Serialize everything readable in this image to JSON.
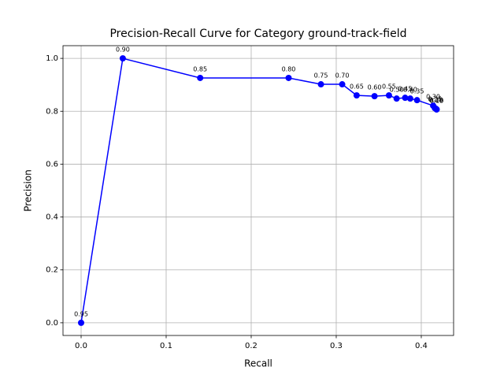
{
  "chart_data": {
    "type": "line",
    "title": "Precision-Recall Curve for Category ground-track-field",
    "xlabel": "Recall",
    "ylabel": "Precision",
    "x": [
      0.0,
      0.049,
      0.14,
      0.244,
      0.282,
      0.307,
      0.324,
      0.345,
      0.362,
      0.371,
      0.381,
      0.387,
      0.395,
      0.414,
      0.416,
      0.417,
      0.418,
      0.418
    ],
    "series": [
      {
        "color": "#0000ff",
        "values": [
          0.0,
          1.0,
          0.926,
          0.926,
          0.902,
          0.902,
          0.86,
          0.857,
          0.86,
          0.848,
          0.851,
          0.848,
          0.842,
          0.821,
          0.812,
          0.81,
          0.807,
          0.807
        ],
        "point_labels": [
          "0.95",
          "0.90",
          "0.85",
          "0.80",
          "0.75",
          "0.70",
          "0.65",
          "0.60",
          "0.55",
          "0.50",
          "0.45",
          "0.40",
          "0.35",
          "0.30",
          "0.25",
          "0.20",
          "0.15",
          "0.10"
        ]
      }
    ],
    "xlim": [
      -0.0213,
      0.438
    ],
    "ylim": [
      -0.048,
      1.048
    ],
    "xticks": [
      {
        "value": 0.0,
        "label": "0.0"
      },
      {
        "value": 0.1,
        "label": "0.1"
      },
      {
        "value": 0.2,
        "label": "0.2"
      },
      {
        "value": 0.3,
        "label": "0.3"
      },
      {
        "value": 0.4,
        "label": "0.4"
      }
    ],
    "yticks": [
      {
        "value": 0.0,
        "label": "0.0"
      },
      {
        "value": 0.2,
        "label": "0.2"
      },
      {
        "value": 0.4,
        "label": "0.4"
      },
      {
        "value": 0.6,
        "label": "0.6"
      },
      {
        "value": 0.8,
        "label": "0.8"
      },
      {
        "value": 1.0,
        "label": "1.0"
      }
    ],
    "grid": true
  }
}
